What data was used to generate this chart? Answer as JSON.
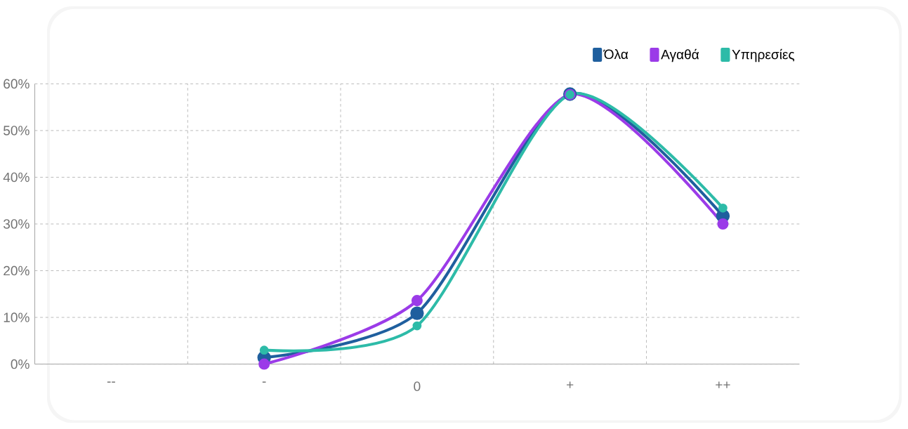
{
  "chart_data": {
    "type": "line",
    "categories": [
      "--",
      "-",
      "0",
      "+",
      "++"
    ],
    "series": [
      {
        "name": "Όλα",
        "color": "#1f5f9e",
        "values": [
          null,
          1.4,
          10.9,
          57.8,
          31.7
        ]
      },
      {
        "name": "Αγαθά",
        "color": "#9b3be8",
        "values": [
          null,
          0,
          13.6,
          57.7,
          30
        ]
      },
      {
        "name": "Υπηρεσίες",
        "color": "#2dbba8",
        "values": [
          null,
          3,
          8.2,
          57.7,
          33.4
        ]
      }
    ],
    "ylim": [
      0,
      60
    ],
    "yticks": [
      {
        "value": 0,
        "label": "0%"
      },
      {
        "value": 10,
        "label": "10%"
      },
      {
        "value": 20,
        "label": "20%"
      },
      {
        "value": 30,
        "label": "30%"
      },
      {
        "value": 40,
        "label": "40%"
      },
      {
        "value": 50,
        "label": "50%"
      },
      {
        "value": 60,
        "label": "60%"
      }
    ],
    "grid": true,
    "legend": "top right",
    "marker": "circle",
    "line_style": "solid"
  }
}
